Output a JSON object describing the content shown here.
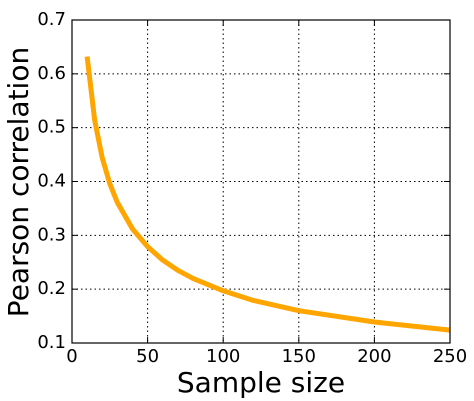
{
  "chart_data": {
    "type": "line",
    "x_label": "Sample size",
    "y_label": "Pearson correlation",
    "x": [
      10,
      15,
      20,
      25,
      30,
      40,
      50,
      60,
      70,
      80,
      100,
      120,
      150,
      200,
      250
    ],
    "values": [
      0.632,
      0.514,
      0.444,
      0.396,
      0.361,
      0.312,
      0.279,
      0.254,
      0.235,
      0.22,
      0.197,
      0.179,
      0.16,
      0.139,
      0.124
    ],
    "color": "#ffa500",
    "xlim": [
      0,
      250
    ],
    "xticks": [
      0,
      50,
      100,
      150,
      200,
      250
    ],
    "ylim": [
      0.1,
      0.7
    ],
    "yticks": [
      0.1,
      0.2,
      0.3,
      0.4,
      0.5,
      0.6,
      0.7
    ],
    "grid": true
  }
}
